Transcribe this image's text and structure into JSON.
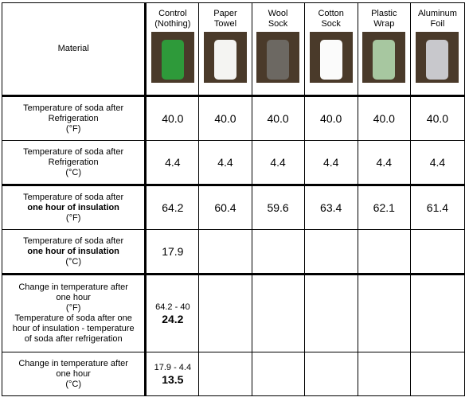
{
  "header": {
    "label": "Material",
    "columns": [
      [
        "Control",
        "(Nothing)"
      ],
      [
        "Paper",
        "Towel"
      ],
      [
        "Wool",
        "Sock"
      ],
      [
        "Cotton",
        "Sock"
      ],
      [
        "Plastic",
        "Wrap"
      ],
      [
        "Aluminum",
        "Foil"
      ]
    ]
  },
  "rows": [
    {
      "label": [
        {
          "text": "Temperature of soda after"
        },
        {
          "text": "Refrigeration"
        },
        {
          "text": "(°F)"
        }
      ],
      "values": [
        "40.0",
        "40.0",
        "40.0",
        "40.0",
        "40.0",
        "40.0"
      ]
    },
    {
      "label": [
        {
          "text": "Temperature of soda after"
        },
        {
          "text": "Refrigeration"
        },
        {
          "text": "(°C)"
        }
      ],
      "values": [
        "4.4",
        "4.4",
        "4.4",
        "4.4",
        "4.4",
        "4.4"
      ]
    },
    {
      "label": [
        {
          "text": "Temperature of soda after"
        },
        {
          "text": "one hour of insulation",
          "bold": true
        },
        {
          "text": "(°F)"
        }
      ],
      "values": [
        "64.2",
        "60.4",
        "59.6",
        "63.4",
        "62.1",
        "61.4"
      ]
    },
    {
      "label": [
        {
          "text": "Temperature of soda after"
        },
        {
          "text": "one hour of insulation",
          "bold": true
        },
        {
          "text": "(°C)"
        }
      ],
      "values": [
        "17.9"
      ]
    },
    {
      "label": [
        {
          "text": "Change in temperature after"
        },
        {
          "text": "one hour"
        },
        {
          "text": "(°F)"
        },
        {
          "text": "Temperature of soda after one"
        },
        {
          "text": "hour of insulation - temperature"
        },
        {
          "text": "of soda after refrigeration"
        }
      ],
      "values": [
        {
          "formula": "64.2 - 40",
          "result": "24.2"
        }
      ]
    },
    {
      "label": [
        {
          "text": "Change in temperature after"
        },
        {
          "text": "one hour"
        },
        {
          "text": "(°C)"
        }
      ],
      "values": [
        {
          "formula": "17.9 - 4.4",
          "result": "13.5"
        }
      ]
    }
  ]
}
